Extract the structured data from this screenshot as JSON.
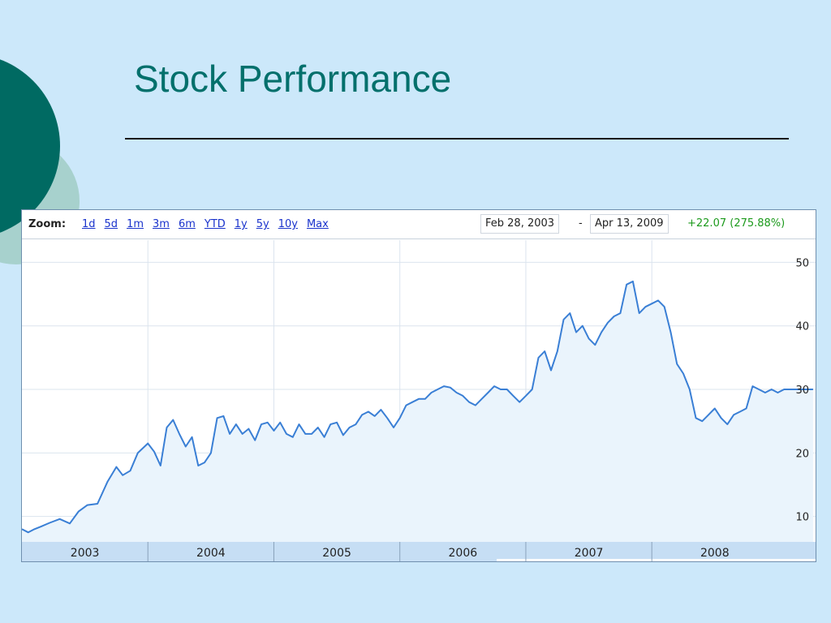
{
  "slide": {
    "title": "Stock Performance"
  },
  "colors": {
    "title": "#04706c",
    "circle_dark": "#006a62",
    "circle_light": "#a7d1cd",
    "background": "#cce8fa",
    "line": "#3a7fd5",
    "area": "#eaf4fc",
    "change_positive": "#1c9a1c",
    "link": "#1a33cc",
    "axis_band": "#c6def4"
  },
  "toolbar": {
    "zoom_label": "Zoom:",
    "zoom_options": [
      "1d",
      "5d",
      "1m",
      "3m",
      "6m",
      "YTD",
      "1y",
      "5y",
      "10y",
      "Max"
    ],
    "start_date": "Feb 28, 2003",
    "separator": "-",
    "end_date": "Apr 13, 2009",
    "change": "+22.07 (275.88%)"
  },
  "chart_data": {
    "type": "line",
    "title": "",
    "xlabel": "",
    "ylabel": "",
    "x_tick_labels": [
      "2003",
      "2004",
      "2005",
      "2006",
      "2007",
      "2008"
    ],
    "y_tick_labels": [
      "10",
      "20",
      "30",
      "40",
      "50"
    ],
    "ylim": [
      6,
      53.5
    ],
    "xlim": [
      2003.0,
      2009.3
    ],
    "grid": true,
    "series": [
      {
        "x": [
          2003.0,
          2003.05,
          2003.1,
          2003.15,
          2003.22,
          2003.3,
          2003.38,
          2003.45,
          2003.52,
          2003.6,
          2003.68,
          2003.75,
          2003.8,
          2003.86,
          2003.92,
          2004.0,
          2004.05,
          2004.1,
          2004.15,
          2004.2,
          2004.25,
          2004.3,
          2004.35,
          2004.4,
          2004.45,
          2004.5,
          2004.55,
          2004.6,
          2004.65,
          2004.7,
          2004.75,
          2004.8,
          2004.85,
          2004.9,
          2004.95,
          2005.0,
          2005.05,
          2005.1,
          2005.15,
          2005.2,
          2005.25,
          2005.3,
          2005.35,
          2005.4,
          2005.45,
          2005.5,
          2005.55,
          2005.6,
          2005.65,
          2005.7,
          2005.75,
          2005.8,
          2005.85,
          2005.9,
          2005.95,
          2006.0,
          2006.05,
          2006.1,
          2006.15,
          2006.2,
          2006.25,
          2006.3,
          2006.35,
          2006.4,
          2006.45,
          2006.5,
          2006.55,
          2006.6,
          2006.65,
          2006.7,
          2006.75,
          2006.8,
          2006.85,
          2006.9,
          2006.95,
          2007.0,
          2007.05,
          2007.1,
          2007.15,
          2007.2,
          2007.25,
          2007.3,
          2007.35,
          2007.4,
          2007.45,
          2007.5,
          2007.55,
          2007.6,
          2007.65,
          2007.7,
          2007.75,
          2007.8,
          2007.85,
          2007.9,
          2007.95,
          2008.0,
          2008.05,
          2008.1,
          2008.15,
          2008.2,
          2008.25,
          2008.3,
          2008.35,
          2008.4,
          2008.45,
          2008.5,
          2008.55,
          2008.6,
          2008.65,
          2008.7,
          2008.75,
          2008.8,
          2008.85,
          2008.9,
          2008.95,
          2009.0,
          2009.05,
          2009.1,
          2009.15,
          2009.2,
          2009.28
        ],
        "y": [
          8.0,
          7.5,
          8.0,
          8.4,
          9.0,
          9.6,
          8.9,
          10.8,
          11.8,
          12.0,
          15.5,
          17.8,
          16.5,
          17.2,
          20.0,
          21.5,
          20.2,
          18.0,
          24.0,
          25.2,
          23.0,
          21.0,
          22.5,
          18.0,
          18.5,
          20.0,
          25.5,
          25.8,
          23.0,
          24.5,
          23.0,
          23.8,
          22.0,
          24.5,
          24.8,
          23.5,
          24.8,
          23.0,
          22.5,
          24.5,
          23.0,
          23.0,
          24.0,
          22.5,
          24.5,
          24.8,
          22.8,
          24.0,
          24.5,
          26.0,
          26.5,
          25.8,
          26.8,
          25.5,
          24.0,
          25.5,
          27.5,
          28.0,
          28.5,
          28.5,
          29.5,
          30.0,
          30.5,
          30.3,
          29.5,
          29.0,
          28.0,
          27.5,
          28.5,
          29.5,
          30.5,
          30.0,
          30.0,
          29.0,
          28.0,
          29.0,
          30.0,
          35.0,
          36.0,
          33.0,
          36.0,
          41.0,
          42.0,
          39.0,
          40.0,
          38.0,
          37.0,
          39.0,
          40.5,
          41.5,
          42.0,
          46.5,
          47.0,
          42.0,
          43.0,
          43.5,
          44.0,
          43.0,
          39.0,
          34.0,
          32.5,
          30.0,
          25.5,
          25.0,
          26.0,
          27.0,
          25.5,
          24.5,
          26.0,
          26.5,
          27.0,
          30.5,
          30.0,
          29.5,
          30.0,
          29.5,
          30.0,
          30.0,
          30.0,
          30.0,
          30.0
        ]
      }
    ]
  }
}
